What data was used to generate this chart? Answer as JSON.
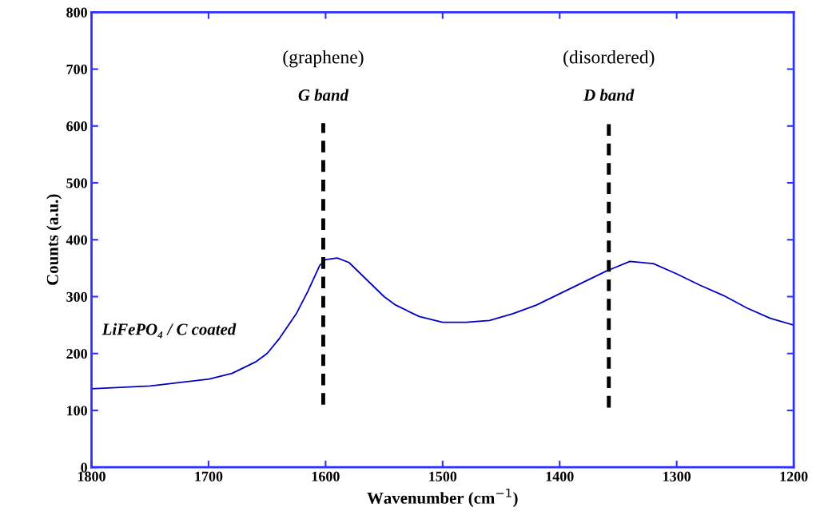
{
  "chart_data": {
    "type": "line",
    "xlabel": "Wavenumber (cm$^{−1}$)",
    "ylabel": "Counts (a.u.)",
    "xlim": [
      1800,
      1200
    ],
    "xticks": [
      1800,
      1700,
      1600,
      1500,
      1400,
      1300,
      1200
    ],
    "ylim": [
      0,
      800
    ],
    "yticks": [
      0,
      100,
      200,
      300,
      400,
      500,
      600,
      700,
      800
    ],
    "grid": false,
    "legend": false,
    "marker": "none",
    "series": [
      {
        "color": "#0000c0",
        "line_style": "solid",
        "x": [
          1800,
          1750,
          1700,
          1680,
          1660,
          1650,
          1640,
          1630,
          1625,
          1615,
          1605,
          1600,
          1590,
          1580,
          1570,
          1560,
          1550,
          1540,
          1520,
          1500,
          1480,
          1460,
          1440,
          1420,
          1400,
          1380,
          1360,
          1340,
          1320,
          1300,
          1280,
          1260,
          1240,
          1220,
          1200
        ],
        "values": [
          138,
          143,
          155,
          165,
          185,
          200,
          225,
          255,
          270,
          310,
          355,
          365,
          368,
          360,
          340,
          320,
          300,
          285,
          265,
          255,
          255,
          258,
          270,
          285,
          305,
          325,
          345,
          362,
          358,
          340,
          320,
          302,
          280,
          262,
          250
        ]
      },
      {
        "color": "#000000",
        "line_style": "dashed",
        "x": [
          1602,
          1602
        ],
        "values": [
          110,
          605
        ]
      },
      {
        "color": "#000000",
        "line_style": "dashed",
        "x": [
          1358,
          1358
        ],
        "values": [
          105,
          605
        ]
      }
    ],
    "annotations": [
      "(graphene)",
      "G band",
      "(disordered)",
      "D band",
      "LiFePO₄ / C coated"
    ]
  }
}
